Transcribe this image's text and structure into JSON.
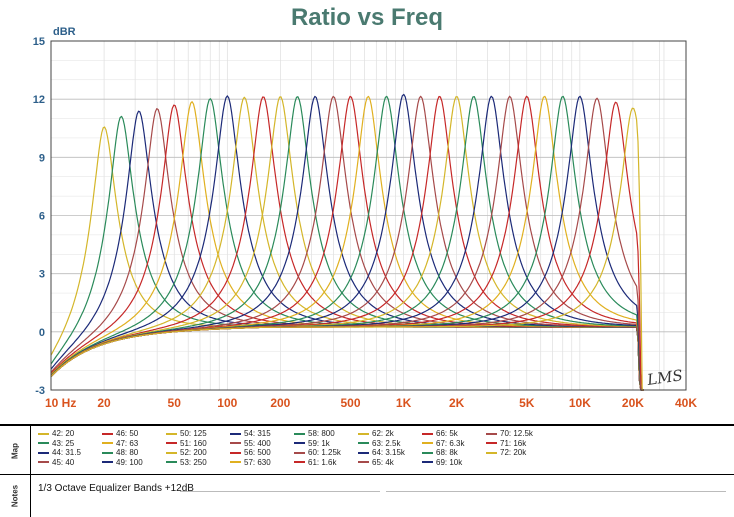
{
  "chart_data": {
    "type": "line",
    "title": "Ratio vs Freq",
    "ylabel": "dBR",
    "xscale": "log",
    "xlim": [
      10,
      40000
    ],
    "ylim": [
      -3,
      15
    ],
    "y_ticks": [
      "15",
      "12",
      "9",
      "6",
      "3",
      "0",
      "-3"
    ],
    "x_ticks": [
      {
        "v": 10,
        "label": "10  Hz"
      },
      {
        "v": 20,
        "label": "20"
      },
      {
        "v": 50,
        "label": "50"
      },
      {
        "v": 100,
        "label": "100"
      },
      {
        "v": 200,
        "label": "200"
      },
      {
        "v": 500,
        "label": "500"
      },
      {
        "v": 1000,
        "label": "1K"
      },
      {
        "v": 2000,
        "label": "2K"
      },
      {
        "v": 5000,
        "label": "5K"
      },
      {
        "v": 10000,
        "label": "10K"
      },
      {
        "v": 20000,
        "label": "20K"
      },
      {
        "v": 40000,
        "label": "40K"
      }
    ],
    "grid": true,
    "watermark": "LMS",
    "series": [
      {
        "name": "42: 20",
        "freq": 20,
        "peak": 11.2,
        "color": "#d4b62a"
      },
      {
        "name": "43: 25",
        "freq": 25,
        "peak": 11.5,
        "color": "#2a8a5a"
      },
      {
        "name": "44: 31.5",
        "freq": 31.5,
        "peak": 11.6,
        "color": "#1c2a78"
      },
      {
        "name": "45: 40",
        "freq": 40,
        "peak": 11.6,
        "color": "#a64a4a"
      },
      {
        "name": "46: 50",
        "freq": 50,
        "peak": 11.7,
        "color": "#c62828"
      },
      {
        "name": "47: 63",
        "freq": 63,
        "peak": 11.8,
        "color": "#e0b020"
      },
      {
        "name": "48: 80",
        "freq": 80,
        "peak": 11.9,
        "color": "#2a8a5a"
      },
      {
        "name": "49: 100",
        "freq": 100,
        "peak": 12.0,
        "color": "#1c2a78"
      },
      {
        "name": "50: 125",
        "freq": 125,
        "peak": 11.9,
        "color": "#d4b62a"
      },
      {
        "name": "51: 160",
        "freq": 160,
        "peak": 11.9,
        "color": "#c62828"
      },
      {
        "name": "52: 200",
        "freq": 200,
        "peak": 11.9,
        "color": "#d4b62a"
      },
      {
        "name": "53: 250",
        "freq": 250,
        "peak": 11.9,
        "color": "#2a8a5a"
      },
      {
        "name": "54: 315",
        "freq": 315,
        "peak": 11.9,
        "color": "#1c2a78"
      },
      {
        "name": "55: 400",
        "freq": 400,
        "peak": 11.9,
        "color": "#a64a4a"
      },
      {
        "name": "56: 500",
        "freq": 500,
        "peak": 11.9,
        "color": "#c62828"
      },
      {
        "name": "57: 630",
        "freq": 630,
        "peak": 11.9,
        "color": "#e0b020"
      },
      {
        "name": "58: 800",
        "freq": 800,
        "peak": 11.9,
        "color": "#2a8a5a"
      },
      {
        "name": "59: 1k",
        "freq": 1000,
        "peak": 12.0,
        "color": "#1c2a78"
      },
      {
        "name": "60: 1.25k",
        "freq": 1250,
        "peak": 11.9,
        "color": "#a64a4a"
      },
      {
        "name": "61: 1.6k",
        "freq": 1600,
        "peak": 11.9,
        "color": "#c62828"
      },
      {
        "name": "62: 2k",
        "freq": 2000,
        "peak": 11.9,
        "color": "#d4b62a"
      },
      {
        "name": "63: 2.5k",
        "freq": 2500,
        "peak": 11.9,
        "color": "#2a8a5a"
      },
      {
        "name": "64: 3.15k",
        "freq": 3150,
        "peak": 11.9,
        "color": "#1c2a78"
      },
      {
        "name": "65: 4k",
        "freq": 4000,
        "peak": 11.9,
        "color": "#a64a4a"
      },
      {
        "name": "66: 5k",
        "freq": 5000,
        "peak": 11.9,
        "color": "#c62828"
      },
      {
        "name": "67: 6.3k",
        "freq": 6300,
        "peak": 11.9,
        "color": "#e0b020"
      },
      {
        "name": "68: 8k",
        "freq": 8000,
        "peak": 11.9,
        "color": "#2a8a5a"
      },
      {
        "name": "69: 10k",
        "freq": 10000,
        "peak": 11.9,
        "color": "#1c2a78"
      },
      {
        "name": "70: 12.5k",
        "freq": 12500,
        "peak": 11.8,
        "color": "#a64a4a"
      },
      {
        "name": "71: 16k",
        "freq": 16000,
        "peak": 11.6,
        "color": "#c62828"
      },
      {
        "name": "72: 20k",
        "freq": 20000,
        "peak": 11.3,
        "color": "#d4b62a"
      }
    ]
  },
  "panels": {
    "map_label": "Map",
    "notes_label": "Notes",
    "notes_text": "1/3 Octave Equalizer Bands +12dB"
  }
}
